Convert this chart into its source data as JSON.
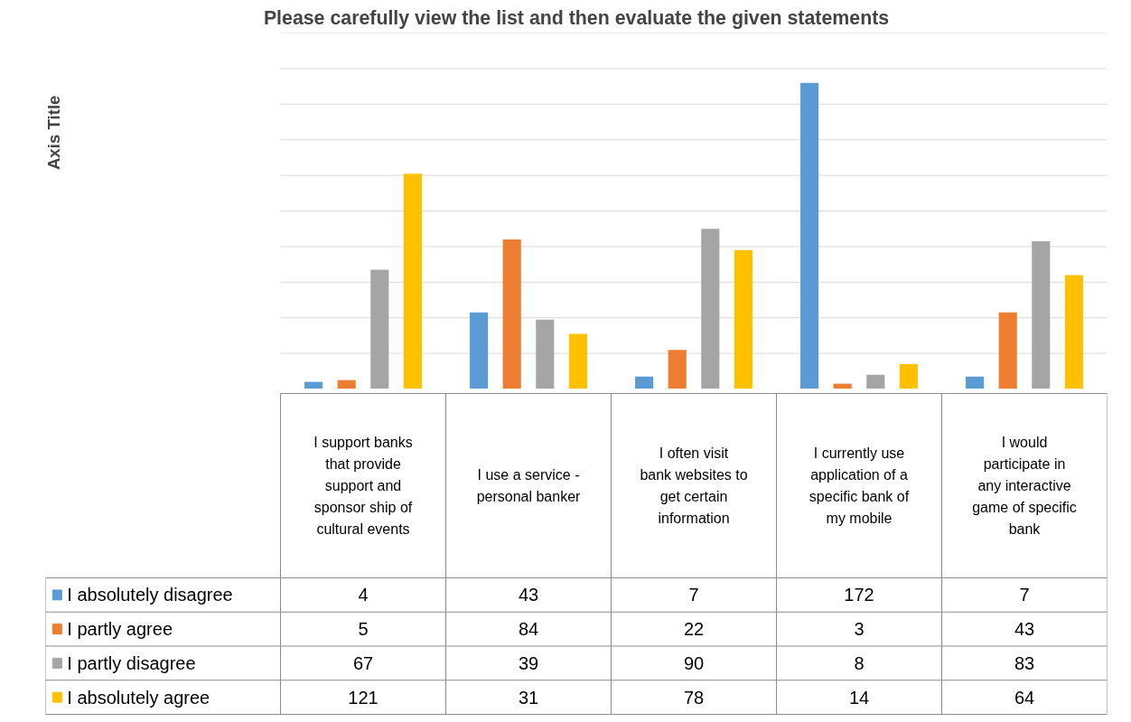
{
  "chart_data": {
    "type": "bar",
    "title": "Please carefully view the list and then evaluate the given statements",
    "annotations": [
      "Axis Title"
    ],
    "categories": [
      "I support banks that provide support and sponsor ship of cultural events",
      "I use a service - personal banker",
      "I often visit bank websites to get certain information",
      "I currently use application of a specific bank of my mobile",
      "I would participate in any interactive game of specific bank"
    ],
    "series": [
      {
        "name": "I absolutely disagree",
        "color": "#5b9bd5",
        "values": [
          4,
          43,
          7,
          172,
          7
        ]
      },
      {
        "name": "I partly agree",
        "color": "#ed7d31",
        "values": [
          5,
          84,
          22,
          3,
          43
        ]
      },
      {
        "name": "I partly disagree",
        "color": "#a5a5a5",
        "values": [
          67,
          39,
          90,
          8,
          83
        ]
      },
      {
        "name": "I absolutely agree",
        "color": "#ffc000",
        "values": [
          121,
          31,
          78,
          14,
          64
        ]
      }
    ],
    "ylim": [
      0,
      200
    ],
    "yticks": [
      {
        "value": 20,
        "label": null
      },
      {
        "value": 40,
        "label": null
      },
      {
        "value": 60,
        "label": null
      },
      {
        "value": 80,
        "label": null
      },
      {
        "value": 100,
        "label": null
      },
      {
        "value": 120,
        "label": null
      },
      {
        "value": 140,
        "label": null
      },
      {
        "value": 160,
        "label": null
      },
      {
        "value": 180,
        "label": null
      },
      {
        "value": 200,
        "label": null
      }
    ],
    "grid": "y",
    "legend": "bottom",
    "tick_labels": "x",
    "data_labels": true
  }
}
